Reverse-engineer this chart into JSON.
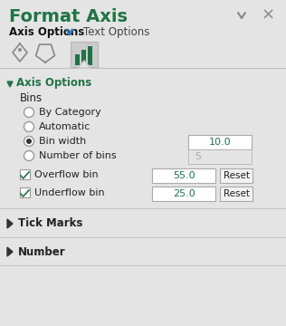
{
  "title": "Format Axis",
  "title_color": "#217346",
  "bg_color": "#e4e4e4",
  "tab1": "Axis Options",
  "tab2": "Text Options",
  "section_title": "Axis Options",
  "section_color": "#217346",
  "bins_label": "Bins",
  "radio_options": [
    "By Category",
    "Automatic",
    "Bin width",
    "Number of bins"
  ],
  "radio_selected": 2,
  "bin_width_value": "10.0",
  "num_bins_value": "5",
  "overflow_label": "Overflow bin",
  "overflow_value": "55.0",
  "underflow_label": "Underflow bin",
  "underflow_value": "25.0",
  "reset_label": "Reset",
  "collapsed_sections": [
    "Tick Marks",
    "Number"
  ],
  "input_bg": "#ffffff",
  "input_border": "#aaaaaa",
  "disabled_text_color": "#aaaaaa",
  "text_color": "#222222",
  "icon_active_bg": "#cccccc",
  "separator_color": "#c0c0c0",
  "close_btn_color": "#888888",
  "arrow_color": "#888888",
  "green_text": "#217346",
  "reset_bg": "#f2f2f2",
  "reset_border": "#aaaaaa"
}
